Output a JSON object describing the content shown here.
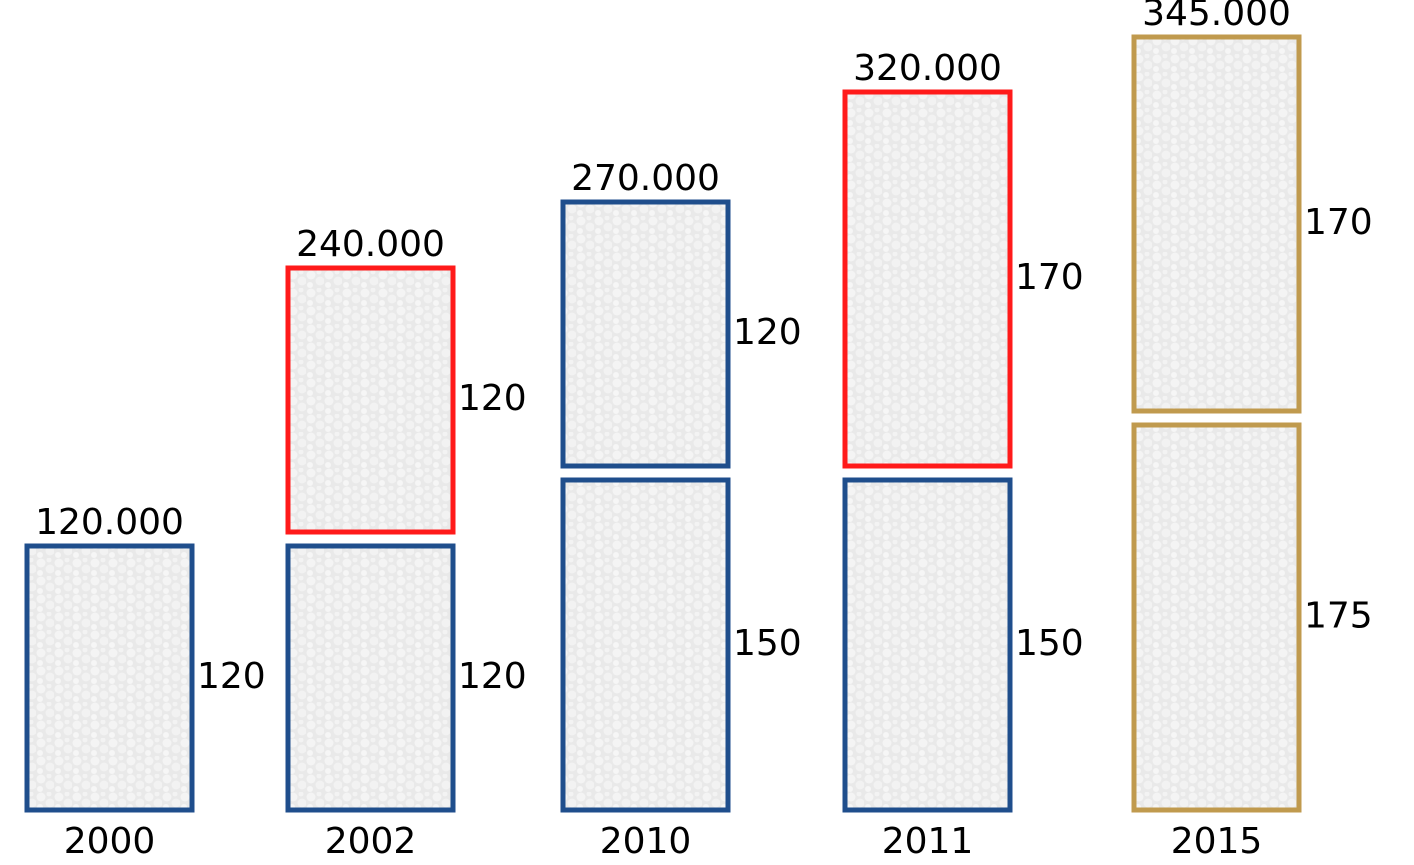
{
  "chart_data": {
    "type": "stacked_blocks",
    "categories": [
      "2000",
      "2002",
      "2010",
      "2011",
      "2015"
    ],
    "total_labels": [
      "120.000",
      "240.000",
      "270.000",
      "320.000",
      "345.000"
    ],
    "series": [
      {
        "values": [
          120,
          120,
          150,
          150,
          175
        ],
        "colors": [
          "#1f4e8c",
          "#1f4e8c",
          "#1f4e8c",
          "#1f4e8c",
          "#c09a4e"
        ]
      },
      {
        "values": [
          null,
          120,
          120,
          170,
          170
        ],
        "colors": [
          null,
          "#ff1a1a",
          "#1f4e8c",
          "#ff1a1a",
          "#c09a4e"
        ]
      }
    ]
  }
}
